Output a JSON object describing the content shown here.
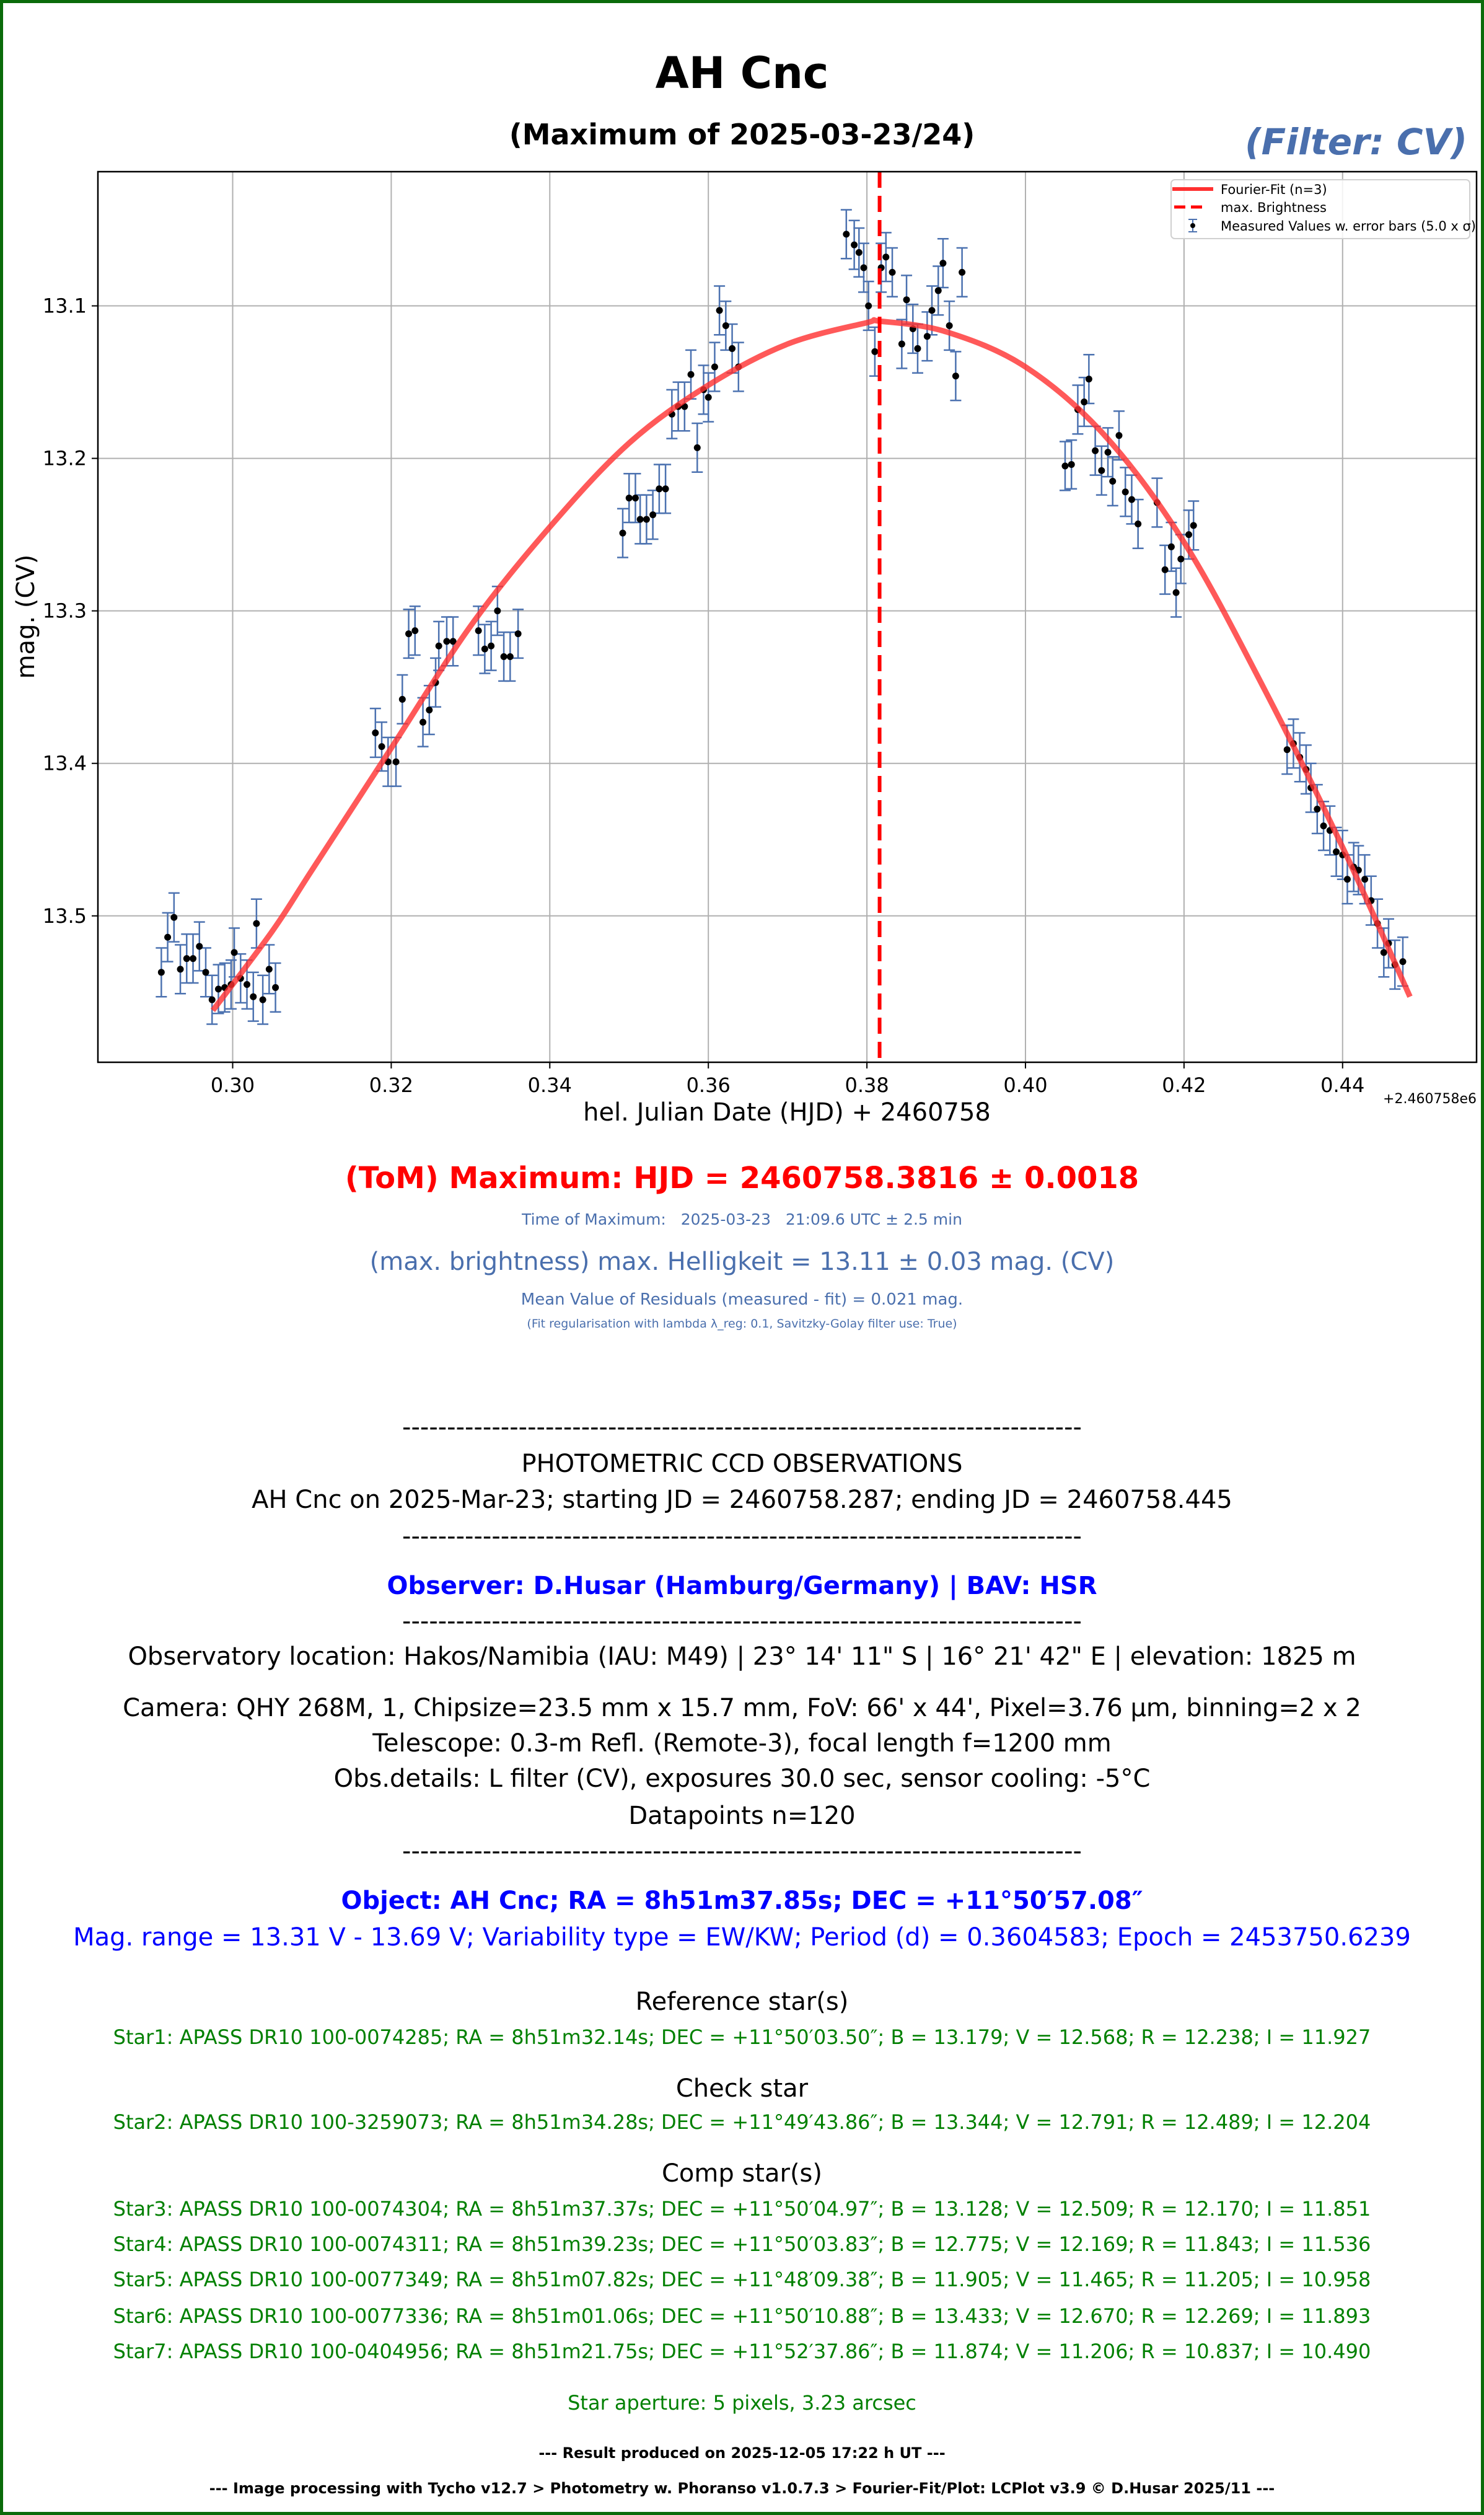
{
  "header": {
    "title": "AH Cnc",
    "subtitle": "(Maximum of 2025-03-23/24)",
    "filter_label": "(Filter: CV)"
  },
  "chart_data": {
    "type": "scatter",
    "xlabel": "hel. Julian Date (HJD) + 2460758",
    "ylabel": "mag. (CV)",
    "x_offset_text": "+2.460758e6",
    "xlim": [
      0.283,
      0.4569
    ],
    "ylim": [
      13.596,
      13.012
    ],
    "y_inverted": true,
    "grid": true,
    "legend_placement": "top-right",
    "x_ticks": [
      "0.30",
      "0.32",
      "0.34",
      "0.36",
      "0.38",
      "0.40",
      "0.42",
      "0.44"
    ],
    "y_ticks": [
      "13.1",
      "13.2",
      "13.3",
      "13.4",
      "13.5"
    ],
    "legend": [
      {
        "label": "Fourier-Fit (n=3)",
        "style": "solid-line"
      },
      {
        "label": "max. Brightness",
        "style": "dashed-line"
      },
      {
        "label": "Measured Values w. error bars (5.0 x σ)",
        "style": "errorbar-point"
      }
    ],
    "colors": {
      "fit": "#ff3030",
      "max_line": "#ff0000",
      "errorbar": "#4c72b0",
      "point": "#000000",
      "grid": "#b0b0b0"
    },
    "max_brightness_x": 0.3816,
    "error_halfwidth_mag": 0.016,
    "fit_series": {
      "name": "Fourier-Fit (n=3)",
      "x": [
        0.2975,
        0.305,
        0.31,
        0.32,
        0.33,
        0.34,
        0.35,
        0.36,
        0.37,
        0.38,
        0.3816,
        0.39,
        0.4,
        0.41,
        0.42,
        0.43,
        0.44,
        0.4485
      ],
      "y": [
        13.562,
        13.51,
        13.47,
        13.39,
        13.31,
        13.245,
        13.19,
        13.152,
        13.125,
        13.111,
        13.11,
        13.117,
        13.14,
        13.185,
        13.255,
        13.35,
        13.455,
        13.553
      ]
    },
    "measured_series": {
      "name": "Measured Values w. error bars (5.0 x σ)",
      "x": [
        0.291,
        0.2918,
        0.2926,
        0.2934,
        0.2942,
        0.295,
        0.2958,
        0.2966,
        0.2974,
        0.2982,
        0.299,
        0.2998,
        0.3002,
        0.301,
        0.3018,
        0.3026,
        0.303,
        0.3038,
        0.3046,
        0.3054,
        0.318,
        0.3188,
        0.3196,
        0.3206,
        0.3214,
        0.3222,
        0.323,
        0.324,
        0.3248,
        0.3256,
        0.326,
        0.327,
        0.3278,
        0.331,
        0.3318,
        0.3326,
        0.3334,
        0.3342,
        0.335,
        0.336,
        0.3492,
        0.35,
        0.3508,
        0.3514,
        0.3522,
        0.353,
        0.3538,
        0.3546,
        0.3554,
        0.3562,
        0.357,
        0.3578,
        0.3586,
        0.3594,
        0.36,
        0.3608,
        0.3614,
        0.3622,
        0.363,
        0.3638,
        0.3774,
        0.3784,
        0.379,
        0.3796,
        0.3802,
        0.381,
        0.3818,
        0.3824,
        0.3832,
        0.3844,
        0.385,
        0.3858,
        0.3864,
        0.3876,
        0.3882,
        0.389,
        0.3896,
        0.3904,
        0.3912,
        0.392,
        0.405,
        0.4058,
        0.4066,
        0.4074,
        0.408,
        0.4088,
        0.4096,
        0.4104,
        0.411,
        0.4118,
        0.4126,
        0.4134,
        0.4142,
        0.4166,
        0.4176,
        0.4184,
        0.419,
        0.4196,
        0.4206,
        0.4212,
        0.433,
        0.4338,
        0.4346,
        0.4354,
        0.436,
        0.4368,
        0.4376,
        0.4384,
        0.4392,
        0.44,
        0.4406,
        0.4414,
        0.442,
        0.4428,
        0.4436,
        0.4444,
        0.4452,
        0.4458,
        0.4466,
        0.4476
      ],
      "y": [
        13.537,
        13.514,
        13.501,
        13.535,
        13.528,
        13.528,
        13.52,
        13.537,
        13.555,
        13.548,
        13.547,
        13.545,
        13.524,
        13.541,
        13.545,
        13.553,
        13.505,
        13.555,
        13.535,
        13.547,
        13.38,
        13.389,
        13.399,
        13.399,
        13.358,
        13.315,
        13.313,
        13.373,
        13.365,
        13.347,
        13.323,
        13.32,
        13.32,
        13.313,
        13.325,
        13.323,
        13.3,
        13.33,
        13.33,
        13.315,
        13.249,
        13.226,
        13.226,
        13.24,
        13.24,
        13.237,
        13.22,
        13.22,
        13.171,
        13.166,
        13.166,
        13.145,
        13.193,
        13.155,
        13.16,
        13.14,
        13.103,
        13.113,
        13.128,
        13.14,
        13.053,
        13.06,
        13.065,
        13.075,
        13.1,
        13.13,
        13.075,
        13.068,
        13.078,
        13.125,
        13.096,
        13.115,
        13.128,
        13.12,
        13.103,
        13.09,
        13.072,
        13.113,
        13.146,
        13.078,
        13.205,
        13.204,
        13.168,
        13.163,
        13.148,
        13.195,
        13.208,
        13.196,
        13.215,
        13.185,
        13.222,
        13.227,
        13.243,
        13.229,
        13.273,
        13.258,
        13.288,
        13.266,
        13.25,
        13.244,
        13.391,
        13.387,
        13.396,
        13.404,
        13.416,
        13.43,
        13.441,
        13.444,
        13.458,
        13.46,
        13.476,
        13.468,
        13.47,
        13.476,
        13.49,
        13.505,
        13.524,
        13.518,
        13.532,
        13.53
      ]
    }
  },
  "results": {
    "tom_maximum": "(ToM) Maximum: HJD = 2460758.3816 ± 0.0018",
    "time_of_maximum": "Time of Maximum:   2025-03-23   21:09.6 UTC ± 2.5 min",
    "max_brightness": "(max. brightness) max. Helligkeit = 13.11 ± 0.03 mag. (CV)",
    "mean_residuals": "Mean Value of Residuals (measured - fit) = 0.021 mag.",
    "fit_regularisation": "(Fit regularisation with lambda λ_reg: 0.1, Savitzky-Golay filter use: True)"
  },
  "report": {
    "separator": "----------------------------------------------------------------------------",
    "heading": "PHOTOMETRIC CCD OBSERVATIONS",
    "run": "AH Cnc on 2025-Mar-23; starting JD = 2460758.287; ending JD = 2460758.445",
    "observer": "Observer: D.Husar (Hamburg/Germany) | BAV: HSR",
    "location": "Observatory location: Hakos/Namibia (IAU: M49) | 23° 14' 11\" S | 16° 21' 42\" E | elevation: 1825 m",
    "camera": "Camera: QHY 268M, 1, Chipsize=23.5 mm x 15.7 mm, FoV: 66' x 44', Pixel=3.76 µm, binning=2 x 2",
    "telescope": "Telescope: 0.3-m Refl. (Remote-3), focal length f=1200 mm",
    "obs_details": "Obs.details: L filter (CV), exposures 30.0 sec, sensor cooling: -5°C",
    "datapoints": "Datapoints n=120",
    "object": "Object: AH Cnc; RA = 8h51m37.85s; DEC = +11°50′57.08″",
    "mag_range": "Mag. range = 13.31 V - 13.69 V; Variability type = EW/KW; Period (d) = 0.3604583; Epoch = 2453750.6239",
    "reference_heading": "Reference star(s)",
    "star1": "Star1: APASS DR10 100-0074285; RA = 8h51m32.14s; DEC = +11°50′03.50″; B = 13.179; V = 12.568; R = 12.238; I = 11.927",
    "check_heading": "Check star",
    "star2": "Star2: APASS DR10 100-3259073; RA = 8h51m34.28s; DEC = +11°49′43.86″; B = 13.344; V = 12.791; R = 12.489; I = 12.204",
    "comp_heading": "Comp star(s)",
    "star3": "Star3: APASS DR10 100-0074304; RA = 8h51m37.37s; DEC = +11°50′04.97″; B = 13.128; V = 12.509; R = 12.170; I = 11.851",
    "star4": "Star4: APASS DR10 100-0074311; RA = 8h51m39.23s; DEC = +11°50′03.83″; B = 12.775; V = 12.169; R = 11.843; I = 11.536",
    "star5": "Star5: APASS DR10 100-0077349; RA = 8h51m07.82s; DEC = +11°48′09.38″; B = 11.905; V = 11.465; R = 11.205; I = 10.958",
    "star6": "Star6: APASS DR10 100-0077336; RA = 8h51m01.06s; DEC = +11°50′10.88″; B = 13.433; V = 12.670; R = 12.269; I = 11.893",
    "star7": "Star7: APASS DR10 100-0404956; RA = 8h51m21.75s; DEC = +11°52′37.86″; B = 11.874; V = 11.206; R = 10.837; I = 10.490",
    "aperture": "Star aperture: 5 pixels, 3.23 arcsec",
    "produced": "--- Result produced on 2025-12-05 17:22 h UT ---",
    "processing": "--- Image processing with Tycho v12.7 > Photometry w. Phoranso v1.0.7.3 > Fourier-Fit/Plot: LCPlot v3.9 © D.Husar 2025/11 ---"
  }
}
